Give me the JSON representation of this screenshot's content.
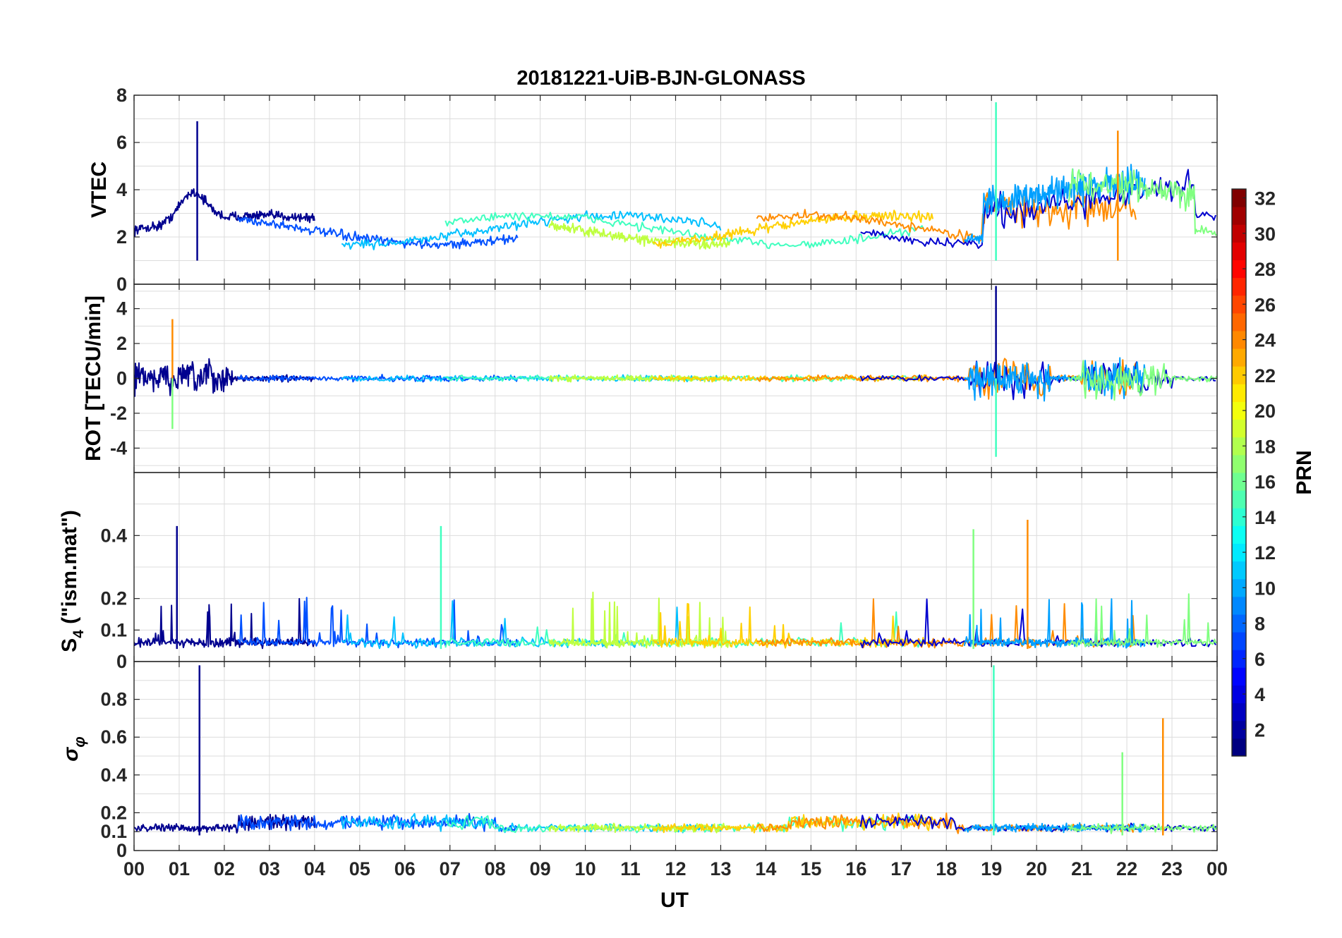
{
  "chart_data": {
    "type": "line",
    "title": "20181221-UiB-BJN-GLONASS",
    "xlabel": "UT",
    "x_tick_labels": [
      "00",
      "01",
      "02",
      "03",
      "04",
      "05",
      "06",
      "07",
      "08",
      "09",
      "10",
      "11",
      "12",
      "13",
      "14",
      "15",
      "16",
      "17",
      "18",
      "19",
      "20",
      "21",
      "22",
      "23",
      "00"
    ],
    "xlim_hours": [
      0,
      24
    ],
    "grid": true,
    "colorbar": {
      "label": "PRN",
      "range": [
        1,
        32
      ],
      "tick_labels": [
        "2",
        "4",
        "6",
        "8",
        "10",
        "12",
        "14",
        "16",
        "18",
        "20",
        "22",
        "24",
        "26",
        "28",
        "30",
        "32"
      ],
      "colormap": "jet",
      "placement": "right"
    },
    "series_colors": [
      "#00008f",
      "#0050ff",
      "#00c0ff",
      "#40ffbf",
      "#bfff40",
      "#ffd000",
      "#ff8c00",
      "#0000cf",
      "#00a0ff",
      "#80ff80"
    ],
    "panels": [
      {
        "id": "vtec",
        "ylabel": "VTEC",
        "ylim": [
          0,
          8
        ],
        "y_tick_labels": [
          "0",
          "2",
          "4",
          "6",
          "8"
        ],
        "peaks": [
          {
            "x": 1.4,
            "y": 6.9,
            "note": "max near 01 UT"
          },
          {
            "x": 19.1,
            "y": 7.7,
            "note": "spike near 19 UT"
          },
          {
            "x": 21.8,
            "y": 6.5
          }
        ],
        "background_level": [
          1,
          4.5
        ]
      },
      {
        "id": "rot",
        "ylabel": "ROT [TECU/min]",
        "ylim": [
          -5.4,
          5.4
        ],
        "y_tick_labels": [
          "-4",
          "-2",
          "0",
          "2",
          "4"
        ],
        "peaks": [
          {
            "x": 19.1,
            "y": 5.3
          },
          {
            "x": 19.1,
            "y": -4.5
          },
          {
            "x": 0.85,
            "y": 3.4
          },
          {
            "x": 0.85,
            "y": -2.9
          }
        ]
      },
      {
        "id": "s4",
        "ylabel_main": "S",
        "ylabel_sub": "4",
        "ylabel_rest": " (\"ism.mat\")",
        "ylim": [
          0,
          0.6
        ],
        "y_tick_labels": [
          "0",
          "0.1",
          "0.2",
          "0.4"
        ],
        "peaks": [
          {
            "x": 0.95,
            "y": 0.43
          },
          {
            "x": 6.8,
            "y": 0.43
          },
          {
            "x": 19.8,
            "y": 0.45
          },
          {
            "x": 18.6,
            "y": 0.42
          }
        ],
        "background_level": [
          0.04,
          0.1
        ]
      },
      {
        "id": "sigma_phi",
        "ylabel_symbol": "σ",
        "ylabel_sub": "φ",
        "ylim": [
          0,
          1
        ],
        "y_tick_labels": [
          "0",
          "0.1",
          "0.2",
          "0.4",
          "0.6",
          "0.8"
        ],
        "peaks": [
          {
            "x": 1.45,
            "y": 0.98
          },
          {
            "x": 19.05,
            "y": 0.98
          },
          {
            "x": 22.8,
            "y": 0.7
          },
          {
            "x": 21.9,
            "y": 0.52
          }
        ],
        "background_level": [
          0.08,
          0.2
        ]
      }
    ]
  }
}
